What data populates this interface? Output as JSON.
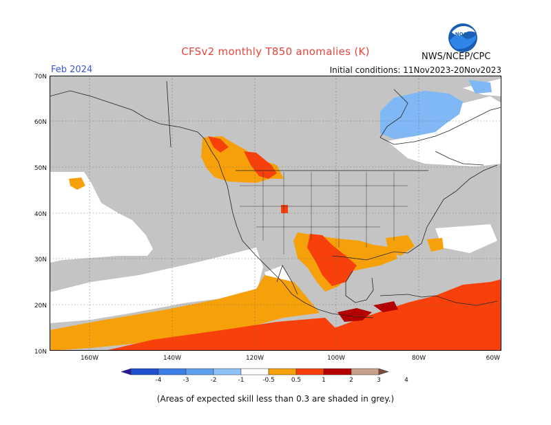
{
  "title": "CFSv2 monthly T850 anomalies (K)",
  "agency": "NWS/NCEP/CPC",
  "logo_text": "NOAA",
  "forecast_month": "Feb 2024",
  "initial_conditions": "Initial conditions: 11Nov2023-20Nov2023",
  "footnote": "(Areas of expected skill less than 0.3 are shaded in grey.)",
  "axes": {
    "lat_labels": [
      "70N",
      "60N",
      "50N",
      "40N",
      "30N",
      "20N",
      "10N"
    ],
    "lon_labels": [
      "160W",
      "140W",
      "120W",
      "100W",
      "80W",
      "60W"
    ]
  },
  "colors": {
    "low_skill_grey": "#c4c4c4",
    "anom_0_5_to_1": "#f7a10a",
    "anom_1_to_2": "#f7400a",
    "anom_2_to_3": "#b30000",
    "anom_neg_1_to_neg_0_5": "#7fb8f5",
    "title_red": "#e8443a",
    "month_blue": "#3a55d8"
  },
  "colorbar": {
    "labels": [
      "-4",
      "-3",
      "-2",
      "-1",
      "-0.5",
      "0.5",
      "1",
      "2",
      "3",
      "4"
    ],
    "colors": [
      "#2a1a9b",
      "#1f4fcf",
      "#3c7ee6",
      "#5ea0f0",
      "#8fc2f7",
      "#ffffff",
      "#f7a10a",
      "#f7400a",
      "#b30000",
      "#c8a08a",
      "#7a4a3a"
    ]
  }
}
